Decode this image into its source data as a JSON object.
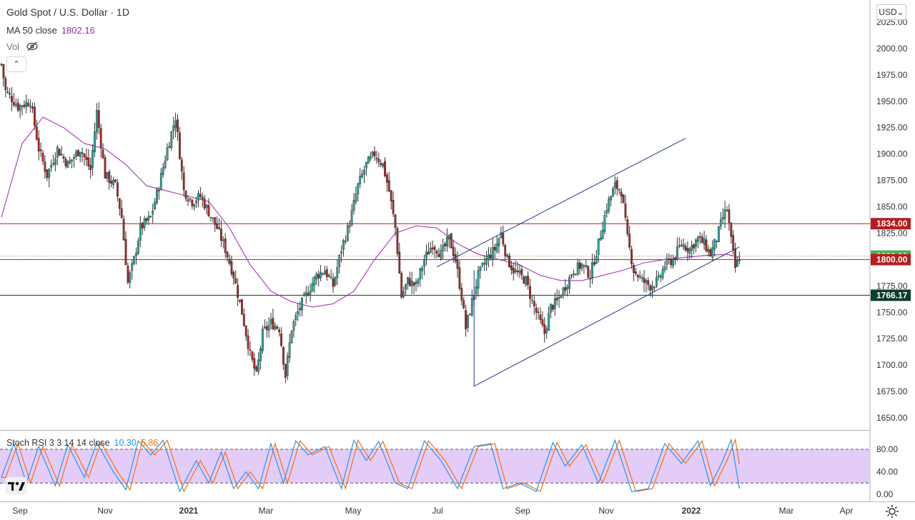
{
  "header": {
    "symbol_title": "Gold Spot / U.S. Dollar · 1D",
    "ma_label": "MA 50 close",
    "ma_value": "1802.16",
    "vol_label": "Vol",
    "collapse_glyph": "⌃",
    "currency": "USD",
    "currency_arrow": "⌄"
  },
  "stoch": {
    "label": "Stoch RSI 3 3 14 14 close",
    "k_value": "10.30",
    "d_value": "5.86",
    "k_color": "#2196f3",
    "d_color": "#ff6d00",
    "band_upper": 80,
    "band_lower": 20,
    "band_fill": "#e1c6f7",
    "axis_ticks": [
      "80.00",
      "40.00",
      "0.00"
    ]
  },
  "colors": {
    "up": "#26a69a",
    "down": "#b22222",
    "ma": "#9c27b0",
    "channel": "#1e3a8a",
    "level_red": "#b71c1c",
    "level_green": "#0b3d2e",
    "last_price": "#4caf50"
  },
  "chart_data": {
    "type": "candlestick",
    "title": "Gold Spot / U.S. Dollar · 1D",
    "ylim": [
      1640,
      2040
    ],
    "y_ticks": [
      "2025.00",
      "2000.00",
      "1975.00",
      "1950.00",
      "1925.00",
      "1900.00",
      "1875.00",
      "1850.00",
      "1825.00",
      "1800.00",
      "1775.00",
      "1750.00",
      "1725.00",
      "1700.00",
      "1675.00",
      "1650.00"
    ],
    "x_ticks": [
      "Sep",
      "Nov",
      "2021",
      "Mar",
      "May",
      "Jul",
      "Sep",
      "Nov",
      "2022",
      "Mar",
      "Apr"
    ],
    "price_path": [
      {
        "t": 0,
        "p": 1985
      },
      {
        "t": 2,
        "p": 1960
      },
      {
        "t": 8,
        "p": 1945
      },
      {
        "t": 14,
        "p": 1950
      },
      {
        "t": 18,
        "p": 1905
      },
      {
        "t": 22,
        "p": 1880
      },
      {
        "t": 27,
        "p": 1905
      },
      {
        "t": 32,
        "p": 1890
      },
      {
        "t": 38,
        "p": 1905
      },
      {
        "t": 43,
        "p": 1885
      },
      {
        "t": 46,
        "p": 1940
      },
      {
        "t": 50,
        "p": 1880
      },
      {
        "t": 55,
        "p": 1870
      },
      {
        "t": 58,
        "p": 1840
      },
      {
        "t": 61,
        "p": 1778
      },
      {
        "t": 64,
        "p": 1800
      },
      {
        "t": 67,
        "p": 1830
      },
      {
        "t": 72,
        "p": 1840
      },
      {
        "t": 76,
        "p": 1870
      },
      {
        "t": 80,
        "p": 1905
      },
      {
        "t": 84,
        "p": 1935
      },
      {
        "t": 88,
        "p": 1865
      },
      {
        "t": 92,
        "p": 1855
      },
      {
        "t": 96,
        "p": 1860
      },
      {
        "t": 100,
        "p": 1845
      },
      {
        "t": 104,
        "p": 1830
      },
      {
        "t": 108,
        "p": 1810
      },
      {
        "t": 112,
        "p": 1785
      },
      {
        "t": 116,
        "p": 1750
      },
      {
        "t": 120,
        "p": 1710
      },
      {
        "t": 123,
        "p": 1690
      },
      {
        "t": 126,
        "p": 1730
      },
      {
        "t": 130,
        "p": 1740
      },
      {
        "t": 134,
        "p": 1735
      },
      {
        "t": 137,
        "p": 1690
      },
      {
        "t": 140,
        "p": 1735
      },
      {
        "t": 144,
        "p": 1755
      },
      {
        "t": 148,
        "p": 1770
      },
      {
        "t": 152,
        "p": 1785
      },
      {
        "t": 156,
        "p": 1790
      },
      {
        "t": 160,
        "p": 1775
      },
      {
        "t": 164,
        "p": 1810
      },
      {
        "t": 168,
        "p": 1835
      },
      {
        "t": 172,
        "p": 1870
      },
      {
        "t": 176,
        "p": 1890
      },
      {
        "t": 180,
        "p": 1900
      },
      {
        "t": 184,
        "p": 1890
      },
      {
        "t": 187,
        "p": 1865
      },
      {
        "t": 190,
        "p": 1830
      },
      {
        "t": 193,
        "p": 1765
      },
      {
        "t": 196,
        "p": 1780
      },
      {
        "t": 200,
        "p": 1775
      },
      {
        "t": 204,
        "p": 1800
      },
      {
        "t": 208,
        "p": 1815
      },
      {
        "t": 212,
        "p": 1805
      },
      {
        "t": 216,
        "p": 1820
      },
      {
        "t": 219,
        "p": 1800
      },
      {
        "t": 222,
        "p": 1765
      },
      {
        "t": 224,
        "p": 1735
      },
      {
        "t": 227,
        "p": 1760
      },
      {
        "t": 230,
        "p": 1785
      },
      {
        "t": 234,
        "p": 1800
      },
      {
        "t": 238,
        "p": 1810
      },
      {
        "t": 241,
        "p": 1825
      },
      {
        "t": 244,
        "p": 1800
      },
      {
        "t": 247,
        "p": 1790
      },
      {
        "t": 250,
        "p": 1785
      },
      {
        "t": 253,
        "p": 1780
      },
      {
        "t": 256,
        "p": 1760
      },
      {
        "t": 259,
        "p": 1745
      },
      {
        "t": 262,
        "p": 1730
      },
      {
        "t": 265,
        "p": 1755
      },
      {
        "t": 268,
        "p": 1760
      },
      {
        "t": 272,
        "p": 1775
      },
      {
        "t": 276,
        "p": 1790
      },
      {
        "t": 280,
        "p": 1795
      },
      {
        "t": 284,
        "p": 1785
      },
      {
        "t": 288,
        "p": 1815
      },
      {
        "t": 292,
        "p": 1850
      },
      {
        "t": 296,
        "p": 1870
      },
      {
        "t": 299,
        "p": 1865
      },
      {
        "t": 302,
        "p": 1820
      },
      {
        "t": 305,
        "p": 1790
      },
      {
        "t": 309,
        "p": 1780
      },
      {
        "t": 313,
        "p": 1775
      },
      {
        "t": 317,
        "p": 1780
      },
      {
        "t": 320,
        "p": 1795
      },
      {
        "t": 324,
        "p": 1800
      },
      {
        "t": 328,
        "p": 1815
      },
      {
        "t": 332,
        "p": 1810
      },
      {
        "t": 336,
        "p": 1820
      },
      {
        "t": 339,
        "p": 1815
      },
      {
        "t": 342,
        "p": 1805
      },
      {
        "t": 345,
        "p": 1820
      },
      {
        "t": 348,
        "p": 1840
      },
      {
        "t": 350,
        "p": 1848
      },
      {
        "t": 352,
        "p": 1818
      },
      {
        "t": 354,
        "p": 1792
      },
      {
        "t": 356,
        "p": 1803
      }
    ],
    "ma50_path": [
      {
        "t": 0,
        "p": 1840
      },
      {
        "t": 10,
        "p": 1910
      },
      {
        "t": 20,
        "p": 1935
      },
      {
        "t": 30,
        "p": 1925
      },
      {
        "t": 40,
        "p": 1910
      },
      {
        "t": 50,
        "p": 1905
      },
      {
        "t": 60,
        "p": 1890
      },
      {
        "t": 70,
        "p": 1870
      },
      {
        "t": 80,
        "p": 1865
      },
      {
        "t": 90,
        "p": 1860
      },
      {
        "t": 100,
        "p": 1855
      },
      {
        "t": 110,
        "p": 1830
      },
      {
        "t": 120,
        "p": 1795
      },
      {
        "t": 130,
        "p": 1770
      },
      {
        "t": 140,
        "p": 1760
      },
      {
        "t": 150,
        "p": 1755
      },
      {
        "t": 160,
        "p": 1758
      },
      {
        "t": 170,
        "p": 1770
      },
      {
        "t": 180,
        "p": 1800
      },
      {
        "t": 190,
        "p": 1825
      },
      {
        "t": 200,
        "p": 1832
      },
      {
        "t": 210,
        "p": 1830
      },
      {
        "t": 220,
        "p": 1815
      },
      {
        "t": 230,
        "p": 1805
      },
      {
        "t": 240,
        "p": 1800
      },
      {
        "t": 250,
        "p": 1795
      },
      {
        "t": 260,
        "p": 1785
      },
      {
        "t": 270,
        "p": 1780
      },
      {
        "t": 280,
        "p": 1780
      },
      {
        "t": 290,
        "p": 1785
      },
      {
        "t": 300,
        "p": 1790
      },
      {
        "t": 310,
        "p": 1797
      },
      {
        "t": 320,
        "p": 1800
      },
      {
        "t": 330,
        "p": 1802
      },
      {
        "t": 340,
        "p": 1804
      },
      {
        "t": 350,
        "p": 1805
      },
      {
        "t": 356,
        "p": 1802
      }
    ],
    "stoch_k_path": [
      {
        "t": 0,
        "p": 30
      },
      {
        "t": 6,
        "p": 90
      },
      {
        "t": 12,
        "p": 20
      },
      {
        "t": 18,
        "p": 85
      },
      {
        "t": 26,
        "p": 15
      },
      {
        "t": 32,
        "p": 88
      },
      {
        "t": 40,
        "p": 30
      },
      {
        "t": 46,
        "p": 92
      },
      {
        "t": 54,
        "p": 40
      },
      {
        "t": 60,
        "p": 8
      },
      {
        "t": 66,
        "p": 95
      },
      {
        "t": 72,
        "p": 70
      },
      {
        "t": 78,
        "p": 96
      },
      {
        "t": 86,
        "p": 5
      },
      {
        "t": 94,
        "p": 60
      },
      {
        "t": 100,
        "p": 20
      },
      {
        "t": 106,
        "p": 75
      },
      {
        "t": 112,
        "p": 10
      },
      {
        "t": 118,
        "p": 40
      },
      {
        "t": 124,
        "p": 10
      },
      {
        "t": 130,
        "p": 90
      },
      {
        "t": 136,
        "p": 20
      },
      {
        "t": 142,
        "p": 95
      },
      {
        "t": 148,
        "p": 70
      },
      {
        "t": 156,
        "p": 85
      },
      {
        "t": 164,
        "p": 10
      },
      {
        "t": 170,
        "p": 96
      },
      {
        "t": 176,
        "p": 60
      },
      {
        "t": 182,
        "p": 94
      },
      {
        "t": 190,
        "p": 20
      },
      {
        "t": 196,
        "p": 10
      },
      {
        "t": 204,
        "p": 95
      },
      {
        "t": 212,
        "p": 60
      },
      {
        "t": 220,
        "p": 10
      },
      {
        "t": 228,
        "p": 85
      },
      {
        "t": 236,
        "p": 90
      },
      {
        "t": 242,
        "p": 10
      },
      {
        "t": 250,
        "p": 20
      },
      {
        "t": 258,
        "p": 5
      },
      {
        "t": 266,
        "p": 92
      },
      {
        "t": 272,
        "p": 50
      },
      {
        "t": 280,
        "p": 88
      },
      {
        "t": 288,
        "p": 20
      },
      {
        "t": 296,
        "p": 96
      },
      {
        "t": 304,
        "p": 5
      },
      {
        "t": 312,
        "p": 10
      },
      {
        "t": 320,
        "p": 90
      },
      {
        "t": 328,
        "p": 55
      },
      {
        "t": 336,
        "p": 95
      },
      {
        "t": 342,
        "p": 15
      },
      {
        "t": 348,
        "p": 60
      },
      {
        "t": 352,
        "p": 97
      },
      {
        "t": 356,
        "p": 10
      }
    ],
    "horizontal_levels": [
      {
        "label": "1834.00",
        "value": 1834,
        "kind": "red"
      },
      {
        "label": "1803.32",
        "value": 1803.32,
        "kind": "last"
      },
      {
        "label": "1800.00",
        "value": 1800,
        "kind": "red"
      },
      {
        "label": "1766.17",
        "value": 1766.17,
        "kind": "green"
      }
    ],
    "channel_lines": [
      {
        "t1": 228,
        "p1": 1680,
        "t2": 356,
        "p2": 1812
      },
      {
        "t1": 210,
        "p1": 1793,
        "t2": 330,
        "p2": 1915
      }
    ]
  }
}
